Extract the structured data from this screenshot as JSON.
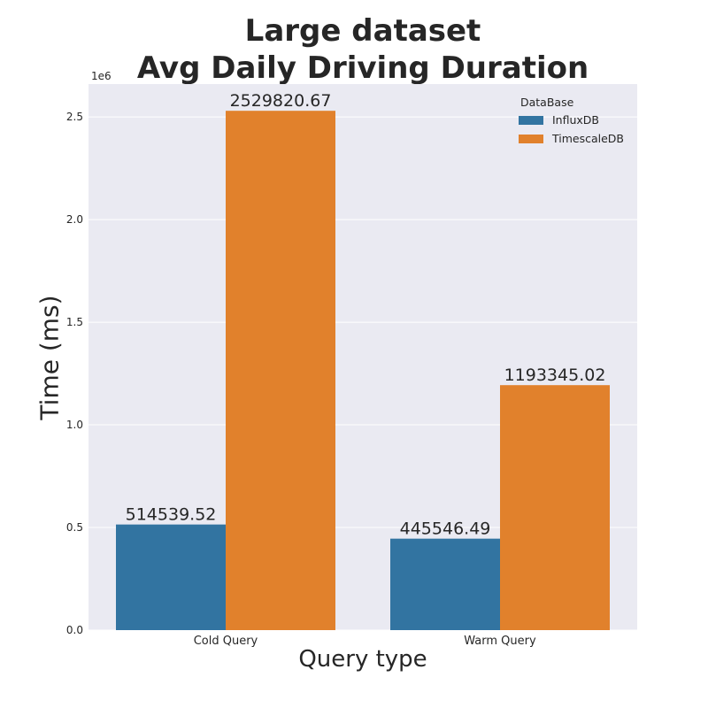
{
  "chart_data": {
    "type": "bar",
    "title_line1": "Large dataset",
    "title_line2": "Avg Daily Driving Duration",
    "xlabel": "Query type",
    "ylabel": "Time (ms)",
    "y_offset_label": "1e6",
    "categories": [
      "Cold Query",
      "Warm Query"
    ],
    "series": [
      {
        "name": "InfluxDB",
        "color": "#3274a1",
        "values": [
          514539.52,
          445546.49
        ],
        "labels": [
          "514539.52",
          "445546.49"
        ]
      },
      {
        "name": "TimescaleDB",
        "color": "#e1812c",
        "values": [
          2529820.67,
          1193345.02
        ],
        "labels": [
          "2529820.67",
          "1193345.02"
        ]
      }
    ],
    "ylim": [
      0,
      2660000
    ],
    "yticks": [
      0,
      500000,
      1000000,
      1500000,
      2000000,
      2500000
    ],
    "ytick_labels": [
      "0.0",
      "0.5",
      "1.0",
      "1.5",
      "2.0",
      "2.5"
    ],
    "legend_title": "DataBase",
    "legend_position": "top-right",
    "grid": true,
    "background": "#eaeaf2"
  }
}
